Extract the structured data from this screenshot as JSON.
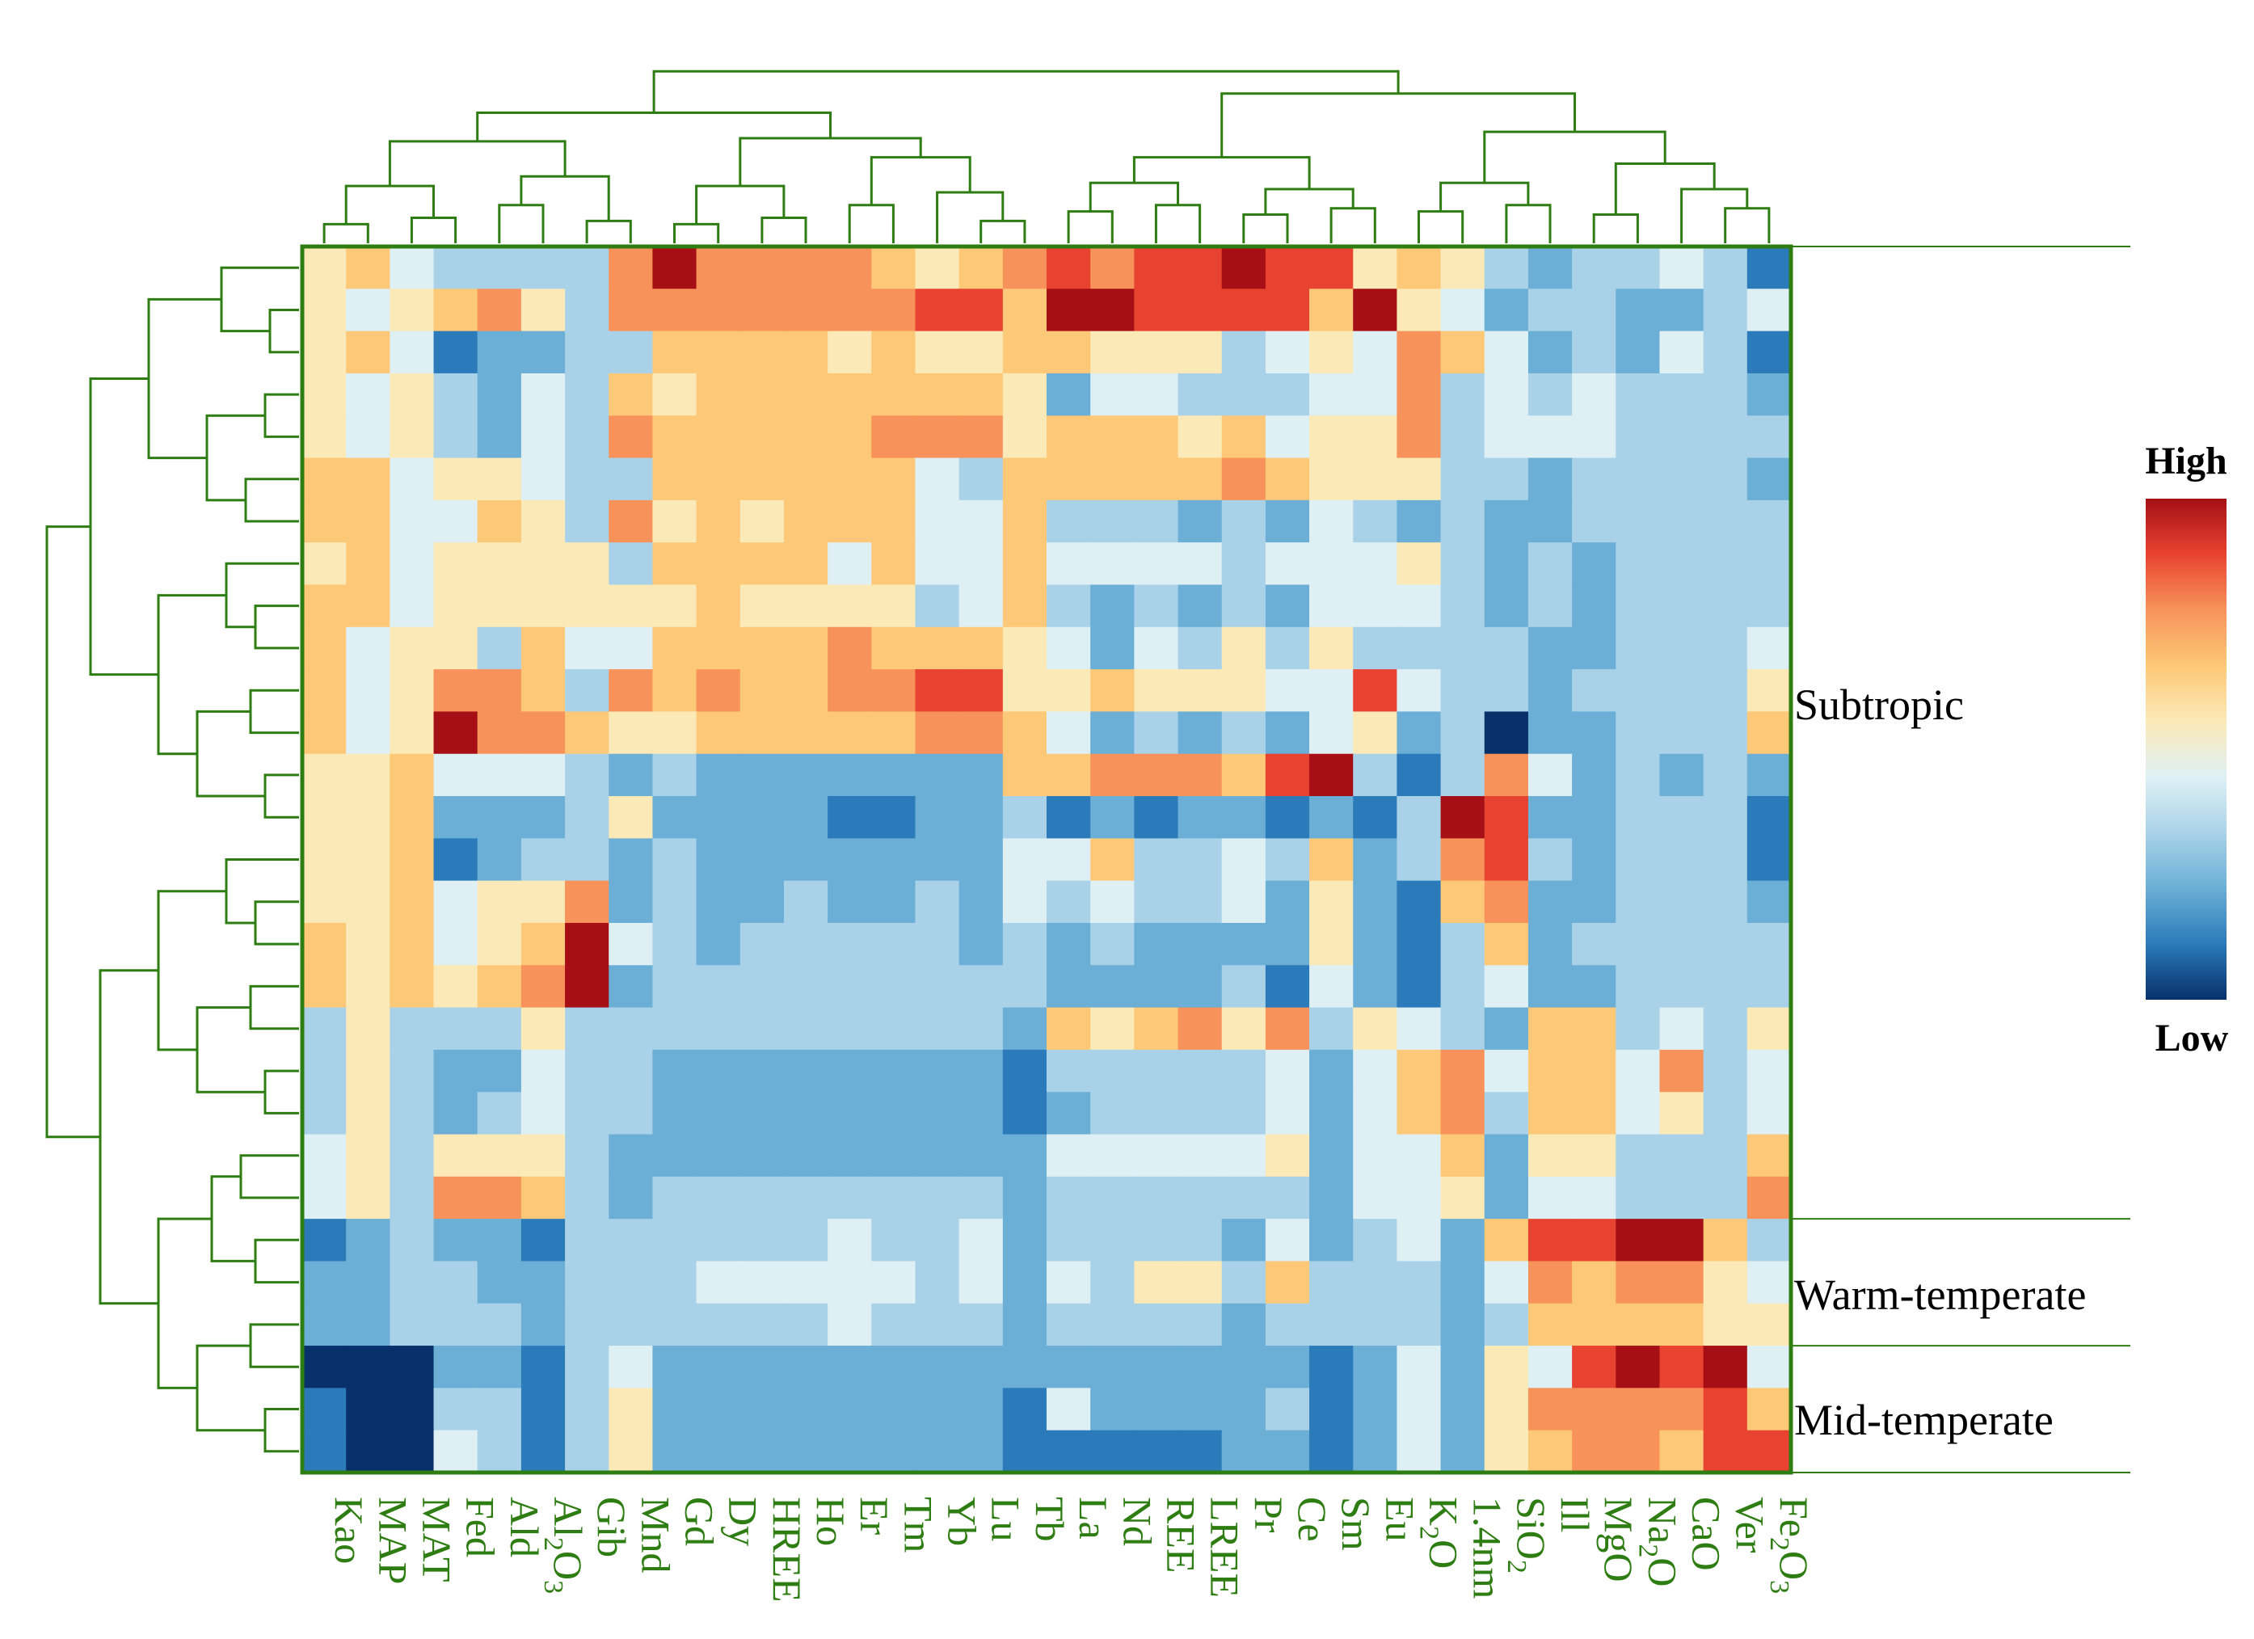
{
  "colors": {
    "frame": "#2e7d12",
    "dendrogram": "#2e7d12",
    "scale": [
      "#08306b",
      "#2b7bba",
      "#6baed6",
      "#a9d2e8",
      "#dff0f5",
      "#fbe9b7",
      "#fdc877",
      "#f7935a",
      "#e84330",
      "#a50f15"
    ]
  },
  "chart_data": {
    "type": "heatmap",
    "title": "",
    "columns": [
      "Kao",
      "MAP",
      "MAT",
      "Fed",
      "Ald",
      "Al2O3",
      "Gib",
      "Mnd",
      "Gd",
      "Dy",
      "HREE",
      "Ho",
      "Er",
      "Tm",
      "Yb",
      "Lu",
      "Tb",
      "La",
      "Nd",
      "REE",
      "LREE",
      "Pr",
      "Ce",
      "Sm",
      "Eu",
      "K2O",
      "1.4nm",
      "SiO2",
      "Ill",
      "MgO",
      "Na2O",
      "CaO",
      "Ver",
      "Fe2O3"
    ],
    "column_labels": [
      {
        "base": "Kao",
        "sub": ""
      },
      {
        "base": "MAP",
        "sub": ""
      },
      {
        "base": "MAT",
        "sub": ""
      },
      {
        "base": "Fed",
        "sub": ""
      },
      {
        "base": "Ald",
        "sub": ""
      },
      {
        "base": "Al",
        "sub": "2",
        "rest": "O",
        "sub2": "3"
      },
      {
        "base": "Gib",
        "sub": ""
      },
      {
        "base": "Mnd",
        "sub": ""
      },
      {
        "base": "Gd",
        "sub": ""
      },
      {
        "base": "Dy",
        "sub": ""
      },
      {
        "base": "HREE",
        "sub": ""
      },
      {
        "base": "Ho",
        "sub": ""
      },
      {
        "base": "Er",
        "sub": ""
      },
      {
        "base": "Tm",
        "sub": ""
      },
      {
        "base": "Yb",
        "sub": ""
      },
      {
        "base": "Lu",
        "sub": ""
      },
      {
        "base": "Tb",
        "sub": ""
      },
      {
        "base": "La",
        "sub": ""
      },
      {
        "base": "Nd",
        "sub": ""
      },
      {
        "base": "REE",
        "sub": ""
      },
      {
        "base": "LREE",
        "sub": ""
      },
      {
        "base": "Pr",
        "sub": ""
      },
      {
        "base": "Ce",
        "sub": ""
      },
      {
        "base": "Sm",
        "sub": ""
      },
      {
        "base": "Eu",
        "sub": ""
      },
      {
        "base": "K",
        "sub": "2",
        "rest": "O",
        "sub2": ""
      },
      {
        "base": "1.4nm",
        "sub": ""
      },
      {
        "base": "SiO",
        "sub": "2",
        "rest": "",
        "sub2": ""
      },
      {
        "base": "Ill",
        "sub": ""
      },
      {
        "base": "MgO",
        "sub": ""
      },
      {
        "base": "Na",
        "sub": "2",
        "rest": "O",
        "sub2": ""
      },
      {
        "base": "CaO",
        "sub": ""
      },
      {
        "base": "Ver",
        "sub": ""
      },
      {
        "base": "Fe",
        "sub": "2",
        "rest": "O",
        "sub2": "3"
      }
    ],
    "row_count": 29,
    "groups": [
      {
        "label": "Subtropic",
        "rows": [
          0,
          22
        ]
      },
      {
        "label": "Warm-temperate",
        "rows": [
          23,
          25
        ]
      },
      {
        "label": "Mid-temperate",
        "rows": [
          26,
          28
        ]
      }
    ],
    "legend": {
      "high": "High",
      "low": "Low"
    },
    "value_range": [
      0,
      9
    ],
    "values": [
      [
        5,
        6,
        4,
        3,
        3,
        3,
        3,
        7,
        9,
        7,
        7,
        7,
        7,
        6,
        5,
        6,
        7,
        8,
        7,
        8,
        8,
        9,
        8,
        8,
        5,
        6,
        5,
        3,
        2,
        3,
        3,
        4,
        3,
        1
      ],
      [
        5,
        4,
        5,
        6,
        7,
        5,
        3,
        7,
        7,
        7,
        7,
        7,
        7,
        7,
        8,
        8,
        6,
        9,
        9,
        8,
        8,
        8,
        8,
        6,
        9,
        5,
        4,
        2,
        3,
        3,
        2,
        2,
        3,
        4
      ],
      [
        5,
        6,
        4,
        1,
        2,
        2,
        3,
        3,
        6,
        6,
        6,
        6,
        5,
        6,
        5,
        5,
        6,
        6,
        5,
        5,
        5,
        3,
        4,
        5,
        4,
        7,
        6,
        4,
        2,
        3,
        2,
        4,
        3,
        1
      ],
      [
        5,
        4,
        5,
        3,
        2,
        4,
        3,
        6,
        5,
        6,
        6,
        6,
        6,
        6,
        6,
        6,
        5,
        2,
        4,
        4,
        3,
        3,
        3,
        4,
        4,
        7,
        3,
        4,
        3,
        4,
        3,
        3,
        3,
        2
      ],
      [
        5,
        4,
        5,
        3,
        2,
        4,
        3,
        7,
        6,
        6,
        6,
        6,
        6,
        7,
        7,
        7,
        5,
        6,
        6,
        6,
        5,
        6,
        4,
        5,
        5,
        7,
        3,
        4,
        4,
        4,
        3,
        3,
        3,
        3
      ],
      [
        6,
        6,
        4,
        5,
        5,
        4,
        3,
        3,
        6,
        6,
        6,
        6,
        6,
        6,
        4,
        3,
        6,
        6,
        6,
        6,
        6,
        7,
        6,
        5,
        5,
        5,
        3,
        3,
        2,
        3,
        3,
        3,
        3,
        2
      ],
      [
        6,
        6,
        4,
        4,
        6,
        5,
        3,
        7,
        5,
        6,
        5,
        6,
        6,
        6,
        4,
        4,
        6,
        3,
        3,
        3,
        2,
        3,
        2,
        4,
        3,
        2,
        3,
        2,
        2,
        3,
        3,
        3,
        3,
        3
      ],
      [
        5,
        6,
        4,
        5,
        5,
        5,
        5,
        3,
        6,
        6,
        6,
        6,
        4,
        6,
        4,
        4,
        6,
        4,
        4,
        4,
        4,
        3,
        4,
        4,
        4,
        5,
        3,
        2,
        3,
        2,
        3,
        3,
        3,
        3
      ],
      [
        6,
        6,
        4,
        5,
        5,
        5,
        5,
        5,
        5,
        6,
        5,
        5,
        5,
        5,
        3,
        4,
        6,
        3,
        2,
        3,
        2,
        3,
        2,
        4,
        4,
        4,
        3,
        2,
        3,
        2,
        3,
        3,
        3,
        3
      ],
      [
        6,
        4,
        5,
        5,
        3,
        6,
        4,
        4,
        6,
        6,
        6,
        6,
        7,
        6,
        6,
        6,
        5,
        4,
        2,
        4,
        3,
        5,
        3,
        5,
        3,
        3,
        3,
        3,
        2,
        2,
        3,
        3,
        3,
        4
      ],
      [
        6,
        4,
        5,
        7,
        7,
        6,
        3,
        7,
        6,
        7,
        6,
        6,
        7,
        7,
        8,
        8,
        5,
        5,
        6,
        5,
        5,
        5,
        4,
        4,
        8,
        4,
        3,
        3,
        2,
        3,
        3,
        3,
        3,
        5
      ],
      [
        6,
        4,
        5,
        9,
        7,
        7,
        6,
        5,
        5,
        6,
        6,
        6,
        6,
        6,
        7,
        7,
        6,
        4,
        2,
        3,
        2,
        3,
        2,
        4,
        5,
        2,
        3,
        0,
        2,
        2,
        3,
        3,
        3,
        6
      ],
      [
        5,
        5,
        6,
        4,
        4,
        4,
        3,
        2,
        3,
        2,
        2,
        2,
        2,
        2,
        2,
        2,
        6,
        6,
        7,
        7,
        7,
        6,
        8,
        9,
        3,
        1,
        3,
        7,
        4,
        2,
        3,
        2,
        3,
        2
      ],
      [
        5,
        5,
        6,
        2,
        2,
        2,
        3,
        5,
        2,
        2,
        2,
        2,
        1,
        1,
        2,
        2,
        3,
        1,
        2,
        1,
        2,
        2,
        1,
        2,
        1,
        3,
        9,
        8,
        2,
        2,
        3,
        3,
        3,
        1
      ],
      [
        5,
        5,
        6,
        1,
        2,
        3,
        3,
        2,
        3,
        2,
        2,
        2,
        2,
        2,
        2,
        2,
        4,
        4,
        6,
        3,
        3,
        4,
        3,
        6,
        2,
        3,
        7,
        8,
        3,
        2,
        3,
        3,
        3,
        1
      ],
      [
        5,
        5,
        6,
        4,
        5,
        5,
        7,
        2,
        3,
        2,
        2,
        3,
        2,
        2,
        3,
        2,
        4,
        3,
        4,
        3,
        3,
        4,
        2,
        5,
        2,
        1,
        6,
        7,
        2,
        2,
        3,
        3,
        3,
        2
      ],
      [
        6,
        5,
        6,
        4,
        5,
        6,
        9,
        4,
        3,
        2,
        3,
        3,
        3,
        3,
        3,
        2,
        3,
        2,
        3,
        2,
        2,
        2,
        2,
        5,
        2,
        1,
        3,
        6,
        2,
        3,
        3,
        3,
        3,
        3
      ],
      [
        6,
        5,
        6,
        5,
        6,
        7,
        9,
        2,
        3,
        3,
        3,
        3,
        3,
        3,
        3,
        3,
        3,
        2,
        2,
        2,
        2,
        3,
        1,
        4,
        2,
        1,
        3,
        4,
        2,
        2,
        3,
        3,
        3,
        3
      ],
      [
        3,
        5,
        3,
        3,
        3,
        5,
        3,
        3,
        3,
        3,
        3,
        3,
        3,
        3,
        3,
        3,
        2,
        6,
        5,
        6,
        7,
        5,
        7,
        3,
        5,
        4,
        3,
        2,
        6,
        6,
        3,
        4,
        3,
        5
      ],
      [
        3,
        5,
        3,
        2,
        2,
        4,
        3,
        3,
        2,
        2,
        2,
        2,
        2,
        2,
        2,
        2,
        1,
        3,
        3,
        3,
        3,
        3,
        4,
        2,
        4,
        6,
        7,
        4,
        6,
        6,
        4,
        7,
        3,
        4
      ],
      [
        3,
        5,
        3,
        2,
        3,
        4,
        3,
        3,
        2,
        2,
        2,
        2,
        2,
        2,
        2,
        2,
        1,
        2,
        3,
        3,
        3,
        3,
        4,
        2,
        4,
        6,
        7,
        3,
        6,
        6,
        4,
        5,
        3,
        4
      ],
      [
        4,
        5,
        3,
        5,
        5,
        5,
        3,
        2,
        2,
        2,
        2,
        2,
        2,
        2,
        2,
        2,
        2,
        4,
        4,
        4,
        4,
        4,
        5,
        2,
        4,
        4,
        6,
        2,
        5,
        5,
        3,
        3,
        3,
        6
      ],
      [
        4,
        5,
        3,
        7,
        7,
        6,
        3,
        2,
        3,
        3,
        3,
        3,
        3,
        3,
        3,
        3,
        2,
        3,
        3,
        3,
        3,
        3,
        3,
        2,
        4,
        4,
        5,
        2,
        4,
        4,
        3,
        3,
        3,
        7
      ],
      [
        1,
        2,
        3,
        2,
        2,
        1,
        3,
        3,
        3,
        3,
        3,
        3,
        4,
        3,
        3,
        4,
        2,
        3,
        3,
        3,
        3,
        2,
        4,
        2,
        3,
        4,
        2,
        6,
        8,
        8,
        9,
        9,
        6,
        3
      ],
      [
        2,
        2,
        3,
        3,
        2,
        2,
        3,
        3,
        3,
        4,
        4,
        4,
        4,
        4,
        3,
        4,
        2,
        4,
        3,
        5,
        5,
        3,
        6,
        3,
        3,
        3,
        2,
        4,
        7,
        6,
        7,
        7,
        5,
        4
      ],
      [
        2,
        2,
        3,
        3,
        3,
        2,
        3,
        3,
        3,
        3,
        3,
        3,
        4,
        3,
        3,
        3,
        2,
        3,
        3,
        3,
        3,
        2,
        3,
        3,
        3,
        3,
        2,
        3,
        6,
        6,
        6,
        6,
        5,
        5
      ],
      [
        0,
        0,
        0,
        2,
        2,
        1,
        3,
        4,
        2,
        2,
        2,
        2,
        2,
        2,
        2,
        2,
        2,
        2,
        2,
        2,
        2,
        2,
        2,
        1,
        2,
        4,
        2,
        5,
        4,
        8,
        9,
        8,
        9,
        4
      ],
      [
        1,
        0,
        0,
        3,
        3,
        1,
        3,
        5,
        2,
        2,
        2,
        2,
        2,
        2,
        2,
        2,
        1,
        4,
        2,
        2,
        2,
        2,
        3,
        1,
        2,
        4,
        2,
        5,
        7,
        7,
        7,
        7,
        8,
        6
      ],
      [
        1,
        0,
        0,
        4,
        3,
        1,
        3,
        5,
        2,
        2,
        2,
        2,
        2,
        2,
        2,
        2,
        1,
        1,
        1,
        1,
        1,
        2,
        2,
        1,
        2,
        4,
        2,
        5,
        6,
        7,
        7,
        6,
        8,
        8
      ]
    ]
  }
}
